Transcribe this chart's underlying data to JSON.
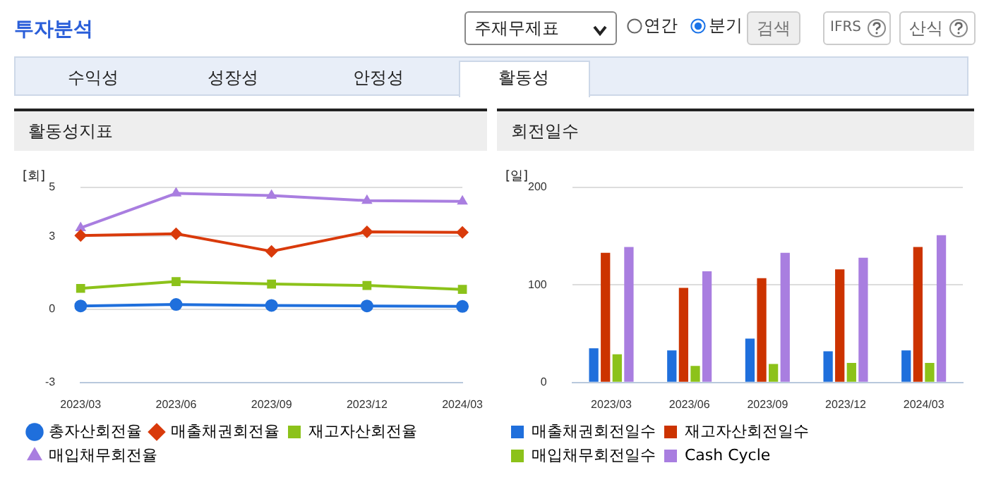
{
  "chart_data": [
    {
      "type": "line",
      "title": "활동성지표",
      "ylabel": "[회]",
      "categories": [
        "2023/03",
        "2023/06",
        "2023/09",
        "2023/12",
        "2024/03"
      ],
      "series": [
        {
          "name": "총자산회전율",
          "color": "#1f6fdc",
          "marker": "circle",
          "values": [
            0.14,
            0.2,
            0.16,
            0.14,
            0.12
          ]
        },
        {
          "name": "매출채권회전율",
          "color": "#d93a0b",
          "marker": "diamond",
          "values": [
            3.03,
            3.1,
            2.38,
            3.18,
            3.16
          ]
        },
        {
          "name": "재고자산회전율",
          "color": "#8cc21a",
          "marker": "square",
          "values": [
            0.86,
            1.14,
            1.04,
            0.98,
            0.82
          ]
        },
        {
          "name": "매입채무회전율",
          "color": "#a97ee0",
          "marker": "triangle",
          "values": [
            3.34,
            4.76,
            4.67,
            4.46,
            4.43
          ]
        }
      ],
      "ylim": [
        -3,
        5
      ],
      "yticks": [
        -3,
        0,
        3,
        5
      ],
      "grid": "y",
      "legend": "bottom",
      "line_style": "solid",
      "annotations": [
        "투자분석",
        "주재무제표",
        "연간",
        "분기",
        "검색",
        "IFRS",
        "산식",
        "수익성",
        "성장성",
        "안정성",
        "활동성"
      ]
    },
    {
      "type": "bar",
      "title": "회전일수",
      "ylabel": "[일]",
      "categories": [
        "2023/03",
        "2023/06",
        "2023/09",
        "2023/12",
        "2024/03"
      ],
      "series": [
        {
          "name": "매출채권회전일수",
          "color": "#1f6fdc",
          "values": [
            35,
            33,
            45,
            32,
            33
          ]
        },
        {
          "name": "재고자산회전일수",
          "color": "#cc3300",
          "values": [
            133,
            97,
            107,
            116,
            139
          ]
        },
        {
          "name": "매입채무회전일수",
          "color": "#8cc21a",
          "values": [
            29,
            17,
            19,
            20,
            20
          ]
        },
        {
          "name": "Cash Cycle",
          "color": "#a97ee0",
          "values": [
            139,
            114,
            133,
            128,
            151
          ]
        }
      ],
      "ylim": [
        0,
        200
      ],
      "yticks": [
        0,
        100,
        200
      ],
      "grid": "y",
      "legend": "bottom"
    }
  ]
}
